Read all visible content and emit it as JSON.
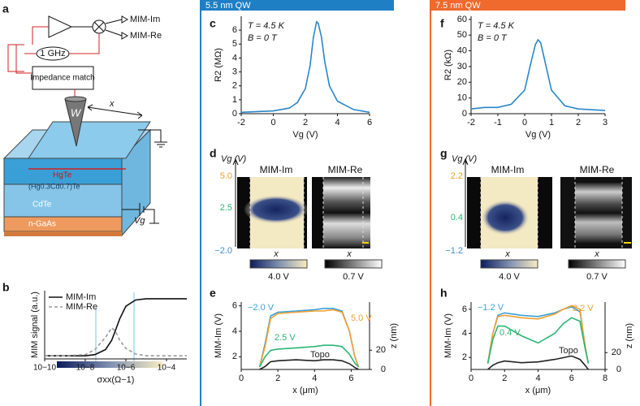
{
  "headers": [
    "5.5 nm QW",
    "7.5 nm QW"
  ],
  "panel_labels": [
    "a",
    "b",
    "c",
    "d",
    "e",
    "f",
    "g",
    "h"
  ],
  "diagram": {
    "outputs": [
      "MIM-Im",
      "MIM-Re"
    ],
    "oscillator": "1 GHz",
    "matching": "Impedance match",
    "tip": "W",
    "scan": "x",
    "layers": [
      "HgTe",
      "(Hg0.3Cd0.7)Te",
      "CdTe",
      "n-GaAs"
    ],
    "gate": "Vg"
  },
  "image_panels": [
    {
      "vg_label": "Vg (V)",
      "ticks": [
        "5.0",
        "2.5",
        "−2.0"
      ],
      "titles": [
        "MIM-Im",
        "MIM-Re"
      ],
      "x_labels": [
        "x",
        "x"
      ],
      "colorbar_labels": [
        "4.0 V",
        "0.7 V"
      ]
    },
    {
      "vg_label": "Vg (V)",
      "ticks": [
        "2.2",
        "0.4",
        "−1.2"
      ],
      "titles": [
        "MIM-Im",
        "MIM-Re"
      ],
      "x_labels": [
        "x",
        "x"
      ],
      "colorbar_labels": [
        "4.0 V",
        "0.7 V"
      ]
    }
  ],
  "chart_data": [
    {
      "type": "line",
      "xlabel": "σxx(Ω−1)",
      "ylabel": "MIM signal (a.u.)",
      "xlog": true,
      "legend": "upper left",
      "x": [
        1e-10,
        1e-09,
        1e-08,
        3e-08,
        1e-07,
        2e-07,
        3e-07,
        5e-07,
        1e-06,
        3e-06,
        1e-05,
        0.0001,
        0.001
      ],
      "xlim": [
        1e-10,
        0.001
      ],
      "xticks": [
        {
          "value": 1e-10,
          "label": "10−10"
        },
        {
          "value": 1e-08,
          "label": "10−8"
        },
        {
          "value": 1e-06,
          "label": "10−6"
        },
        {
          "value": 0.0001,
          "label": "10−4"
        }
      ],
      "ylim": [
        0,
        1.1
      ],
      "series": [
        {
          "name": "MIM-Im",
          "color": "#111111",
          "dash": false,
          "values": [
            0.05,
            0.05,
            0.05,
            0.07,
            0.15,
            0.3,
            0.45,
            0.65,
            0.85,
            0.95,
            0.97,
            0.97,
            0.97
          ]
        },
        {
          "name": "MIM-Re",
          "color": "#999999",
          "dash": true,
          "values": [
            0.05,
            0.05,
            0.07,
            0.15,
            0.35,
            0.5,
            0.45,
            0.3,
            0.17,
            0.08,
            0.05,
            0.05,
            0.05
          ]
        }
      ]
    },
    {
      "type": "line",
      "xlabel": "Vg (V)",
      "ylabel": "R2 (MΩ)",
      "annotations": [
        "T = 4.5 K",
        "B = 0 T"
      ],
      "x": [
        -2,
        -1,
        0,
        1,
        1.5,
        2,
        2.3,
        2.5,
        2.7,
        2.8,
        3,
        3.2,
        3.5,
        4,
        5,
        6
      ],
      "xlim": [
        -2,
        6
      ],
      "xticks": [
        -2,
        0,
        2,
        4,
        6
      ],
      "ylim": [
        0,
        7
      ],
      "yticks": [
        0,
        1,
        2,
        3,
        4,
        5,
        6
      ],
      "series": [
        {
          "color": "#2a86c8",
          "values": [
            0.1,
            0.15,
            0.2,
            0.4,
            0.8,
            1.8,
            3.5,
            5.5,
            6.6,
            6.5,
            5.5,
            3.8,
            2,
            0.9,
            0.3,
            0.1
          ]
        }
      ]
    },
    {
      "type": "line",
      "xlabel": "x (μm)",
      "ylabel": "MIM-Im (V)",
      "y2label": "z (nm)",
      "x": [
        1,
        1.3,
        1.6,
        2,
        3,
        4,
        4.5,
        5,
        5.5,
        5.9,
        6.2,
        6.4
      ],
      "xlim": [
        0,
        7
      ],
      "xticks": [
        0,
        2,
        4,
        6
      ],
      "ylim": [
        1,
        6.3
      ],
      "yticks": [
        2,
        4,
        6
      ],
      "y2lim": [
        0,
        70
      ],
      "y2ticks": [
        0,
        20
      ],
      "series": [
        {
          "name": "−2.0 V",
          "color": "#3aa0d8",
          "values": [
            1.2,
            3,
            5.2,
            5.5,
            5.6,
            5.7,
            5.8,
            5.8,
            5.6,
            4,
            2,
            1.2
          ]
        },
        {
          "name": "5.0 V",
          "color": "#f0a030",
          "values": [
            1.2,
            2.8,
            5.0,
            5.4,
            5.5,
            5.6,
            5.6,
            5.7,
            5.5,
            4,
            2,
            1.2
          ]
        },
        {
          "name": "2.5 V",
          "color": "#2bb673",
          "values": [
            1.2,
            2,
            2.5,
            2.6,
            2.7,
            2.8,
            2.9,
            2.9,
            2.8,
            2.2,
            1.5,
            1.2
          ]
        },
        {
          "name": "Topo",
          "color": "#222222",
          "axis": "y2",
          "values": [
            0,
            3,
            8,
            9,
            10,
            9,
            10,
            10,
            9,
            6,
            2,
            0
          ]
        }
      ]
    },
    {
      "type": "line",
      "xlabel": "Vg (V)",
      "ylabel": "R2 (kΩ)",
      "annotations": [
        "T = 4.5 K",
        "B = 0 T"
      ],
      "x": [
        -2,
        -1.5,
        -1,
        -0.5,
        0,
        0.2,
        0.4,
        0.5,
        0.6,
        0.8,
        1,
        1.5,
        2,
        3
      ],
      "xlim": [
        -2,
        3
      ],
      "xticks": [
        -2,
        -1,
        0,
        1,
        2,
        3
      ],
      "ylim": [
        0,
        62
      ],
      "yticks": [
        0,
        10,
        20,
        30,
        40,
        50,
        60
      ],
      "series": [
        {
          "color": "#2a86c8",
          "values": [
            3,
            4,
            4,
            6,
            15,
            30,
            44,
            47,
            45,
            30,
            15,
            5,
            3,
            2
          ]
        }
      ]
    },
    {
      "type": "line",
      "xlabel": "x (μm)",
      "ylabel": "MIM-Im (V)",
      "y2label": "z (nm)",
      "x": [
        1,
        1.3,
        1.6,
        2,
        3,
        4,
        5,
        5.5,
        6,
        6.5,
        6.8,
        7
      ],
      "xlim": [
        0,
        8
      ],
      "xticks": [
        0,
        2,
        4,
        6,
        8
      ],
      "ylim": [
        1,
        6.6
      ],
      "yticks": [
        2,
        4,
        6
      ],
      "y2lim": [
        0,
        80
      ],
      "y2ticks": [
        0,
        20
      ],
      "series": [
        {
          "name": "−1.2 V",
          "color": "#3aa0d8",
          "values": [
            1.5,
            4,
            5.5,
            5.7,
            5.5,
            5.4,
            5.7,
            6,
            6.2,
            5.8,
            3,
            1.5
          ]
        },
        {
          "name": "2.2 V",
          "color": "#f0a030",
          "values": [
            1.5,
            4,
            5.4,
            5.5,
            5.3,
            5.2,
            5.6,
            6,
            6.3,
            6,
            3,
            1.5
          ]
        },
        {
          "name": "0.4 V",
          "color": "#2bb673",
          "values": [
            1.5,
            3.5,
            4.6,
            4.6,
            3.8,
            3.2,
            4,
            4.8,
            5.3,
            5,
            2.8,
            1.5
          ]
        },
        {
          "name": "Topo",
          "color": "#222222",
          "axis": "y2",
          "values": [
            0,
            5,
            8,
            10,
            8,
            9,
            12,
            14,
            16,
            12,
            5,
            0
          ]
        }
      ]
    }
  ]
}
